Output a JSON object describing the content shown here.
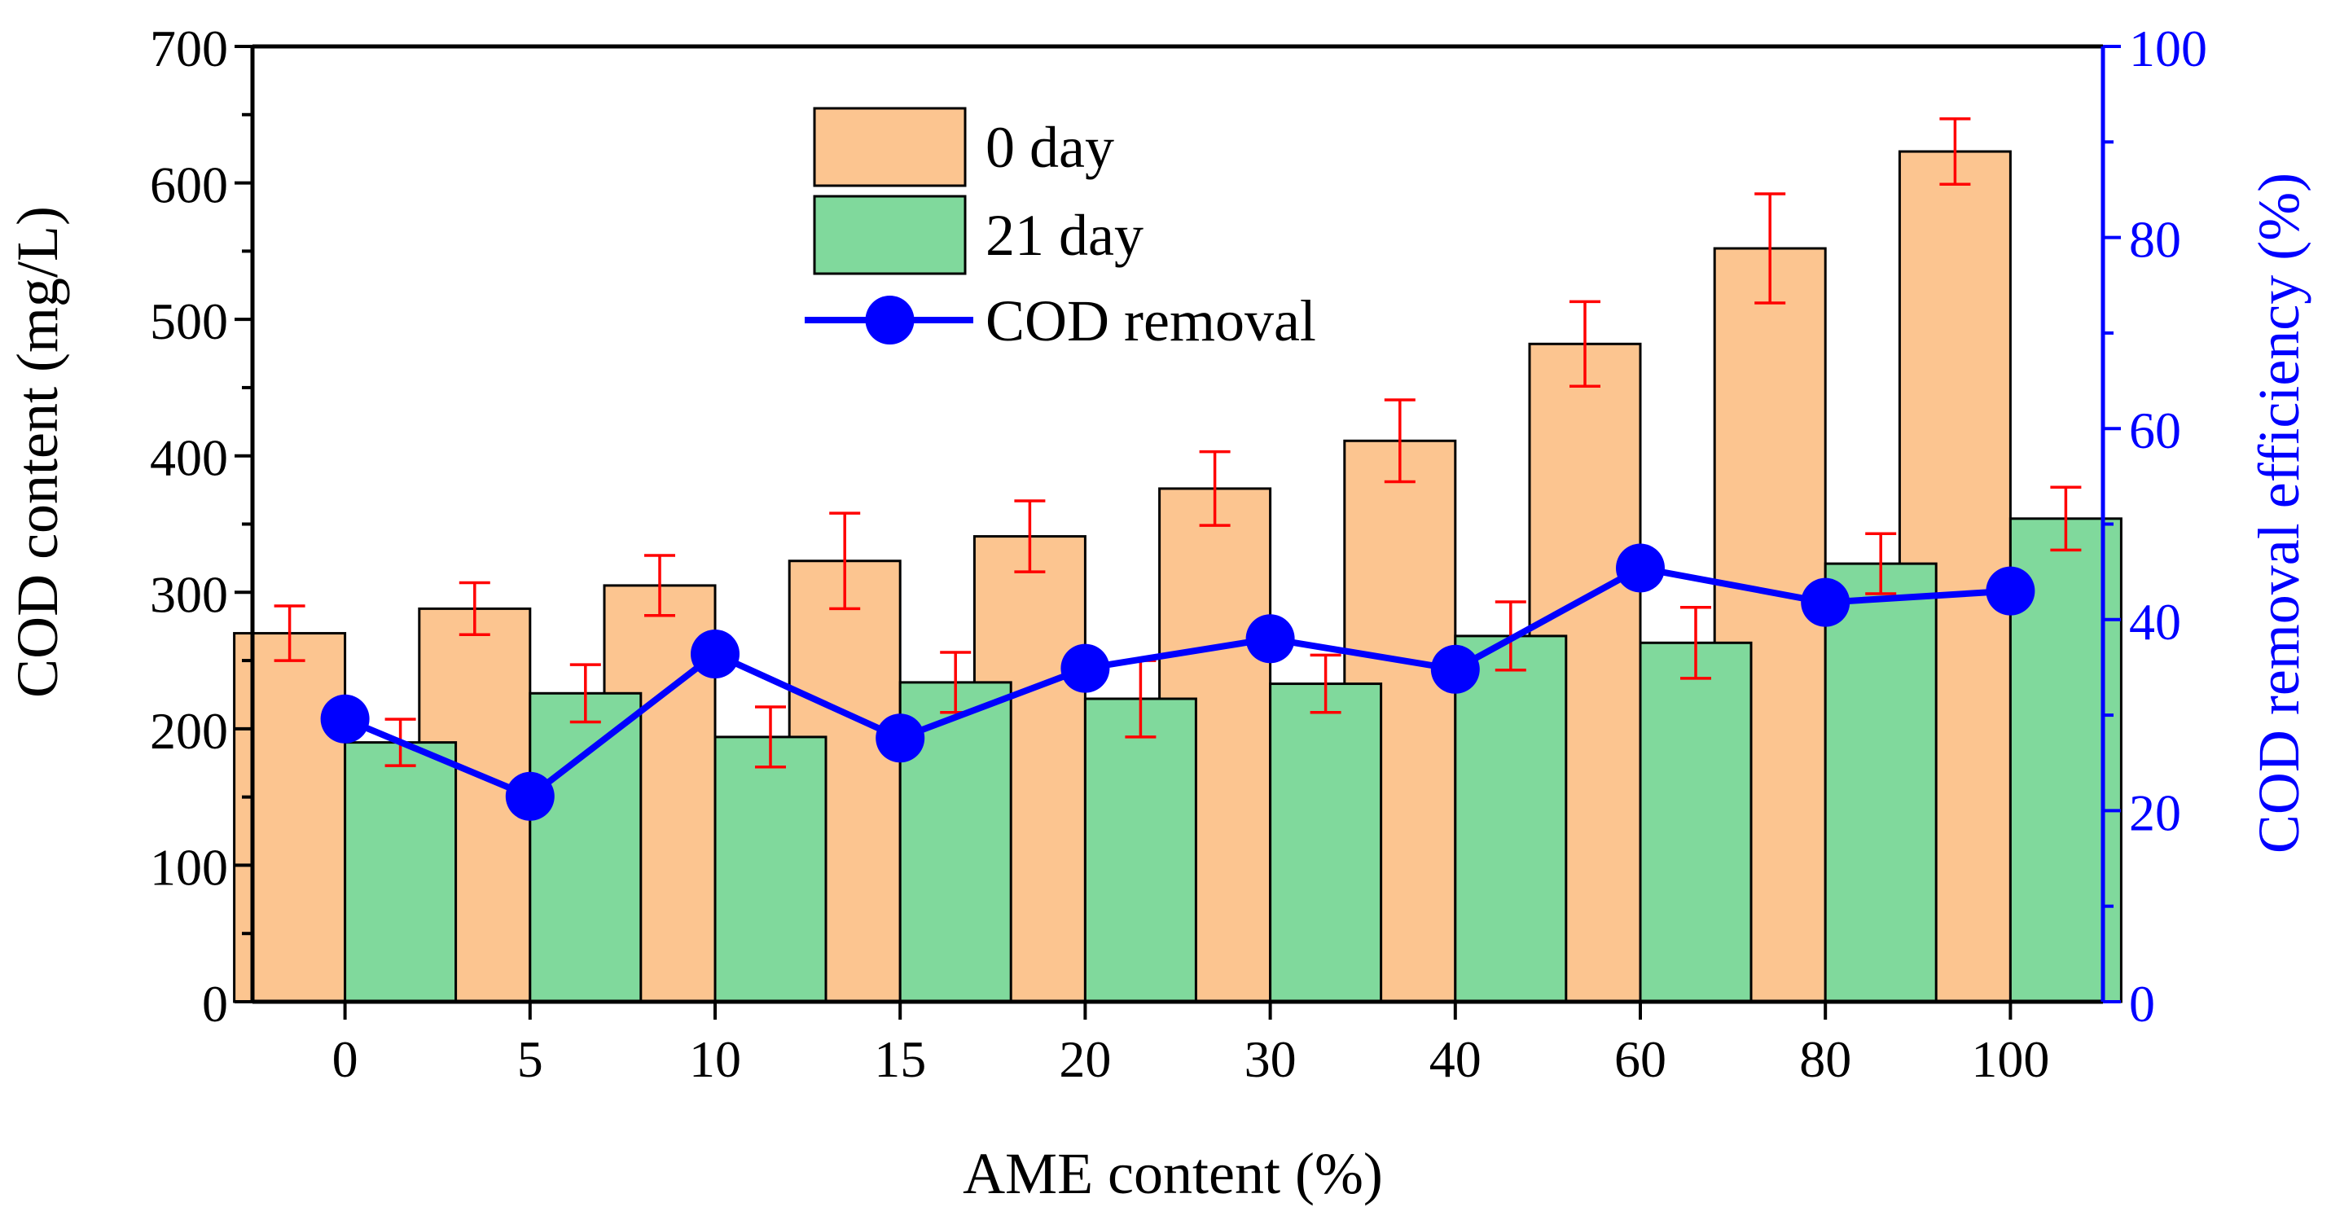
{
  "chart_data": {
    "type": "bar",
    "categories": [
      "0",
      "5",
      "10",
      "15",
      "20",
      "30",
      "40",
      "60",
      "80",
      "100"
    ],
    "xlabel": "AME content (%)",
    "ylabel": "COD content (mg/L)",
    "ylabel_right": "COD removal efficiency (%)",
    "ylim": [
      0,
      700
    ],
    "ylim_right": [
      0,
      100
    ],
    "yticks": [
      "0",
      "100",
      "200",
      "300",
      "400",
      "500",
      "600",
      "700"
    ],
    "yticks_right": [
      "0",
      "20",
      "40",
      "60",
      "80",
      "100"
    ],
    "series": [
      {
        "name": "0 day",
        "kind": "bar",
        "axis": "left",
        "color": "#fcc590",
        "values": [
          270,
          288,
          305,
          323,
          341,
          376,
          411,
          482,
          552,
          623
        ],
        "errors": [
          20,
          19,
          22,
          35,
          26,
          27,
          30,
          31,
          40,
          24
        ]
      },
      {
        "name": "21 day",
        "kind": "bar",
        "axis": "left",
        "color": "#80d99c",
        "values": [
          190,
          226,
          194,
          234,
          222,
          233,
          268,
          263,
          321,
          354
        ],
        "errors": [
          17,
          21,
          22,
          22,
          28,
          21,
          25,
          26,
          22,
          23
        ]
      },
      {
        "name": "COD removal",
        "kind": "line",
        "axis": "right",
        "color": "#0000ff",
        "values": [
          29.6,
          21.5,
          36.4,
          27.6,
          34.9,
          38.0,
          34.8,
          45.4,
          41.8,
          43.0
        ]
      }
    ],
    "error_bar_color": "#ff0000",
    "legend_position": "top-center"
  }
}
